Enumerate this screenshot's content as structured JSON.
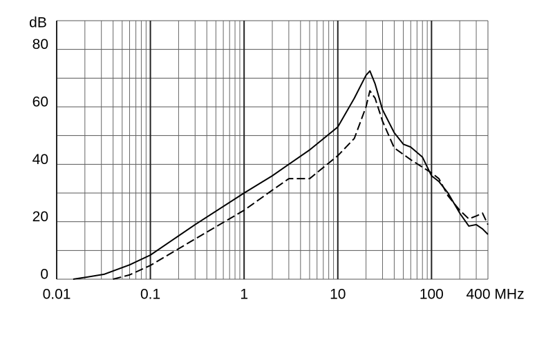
{
  "chart_data": {
    "type": "line",
    "x_unit": "MHz",
    "y_unit": "dB",
    "log_x": true,
    "xlim": [
      0.01,
      400
    ],
    "ylim": [
      0,
      90
    ],
    "xticks": [
      0.01,
      0.1,
      1,
      10,
      100,
      400
    ],
    "yticks": [
      0,
      20,
      40,
      60,
      80
    ],
    "xgrid": [
      0.01,
      0.02,
      0.03,
      0.04,
      0.05,
      0.06,
      0.07,
      0.08,
      0.09,
      0.1,
      0.2,
      0.3,
      0.4,
      0.5,
      0.6,
      0.7,
      0.8,
      0.9,
      1,
      2,
      3,
      4,
      5,
      6,
      7,
      8,
      9,
      10,
      20,
      30,
      40,
      50,
      60,
      70,
      80,
      90,
      100,
      200,
      300,
      400
    ],
    "ygrid": [
      0,
      10,
      20,
      30,
      40,
      50,
      60,
      70,
      80,
      90
    ],
    "series": [
      {
        "color": "#000000",
        "dash": false,
        "x": [
          0.015,
          0.019,
          0.032,
          0.06,
          0.1,
          0.3,
          1,
          2,
          3,
          5,
          10,
          15,
          20,
          22,
          25,
          30,
          40,
          50,
          60,
          80,
          100,
          120,
          150,
          200,
          250,
          300,
          350,
          400
        ],
        "values": [
          0,
          0.5,
          1.7,
          5,
          8.4,
          19,
          30,
          36,
          40,
          45,
          53,
          63,
          71,
          72.5,
          68,
          59,
          51,
          47,
          46,
          42.5,
          36,
          34,
          30,
          23,
          18.5,
          19,
          17.5,
          15.6
        ]
      },
      {
        "color": "#000000",
        "dash": true,
        "x": [
          0.04,
          0.06,
          0.1,
          0.3,
          1,
          2,
          3,
          5,
          10,
          15,
          20,
          22,
          25,
          30,
          40,
          60,
          100,
          120,
          150,
          200,
          250,
          300,
          350,
          400
        ],
        "values": [
          0,
          1.5,
          4.8,
          14,
          24,
          31,
          35,
          35,
          43,
          49,
          60,
          65.6,
          63,
          55,
          45.7,
          41.6,
          37,
          35,
          29,
          24,
          21,
          22,
          23,
          19
        ]
      }
    ]
  }
}
